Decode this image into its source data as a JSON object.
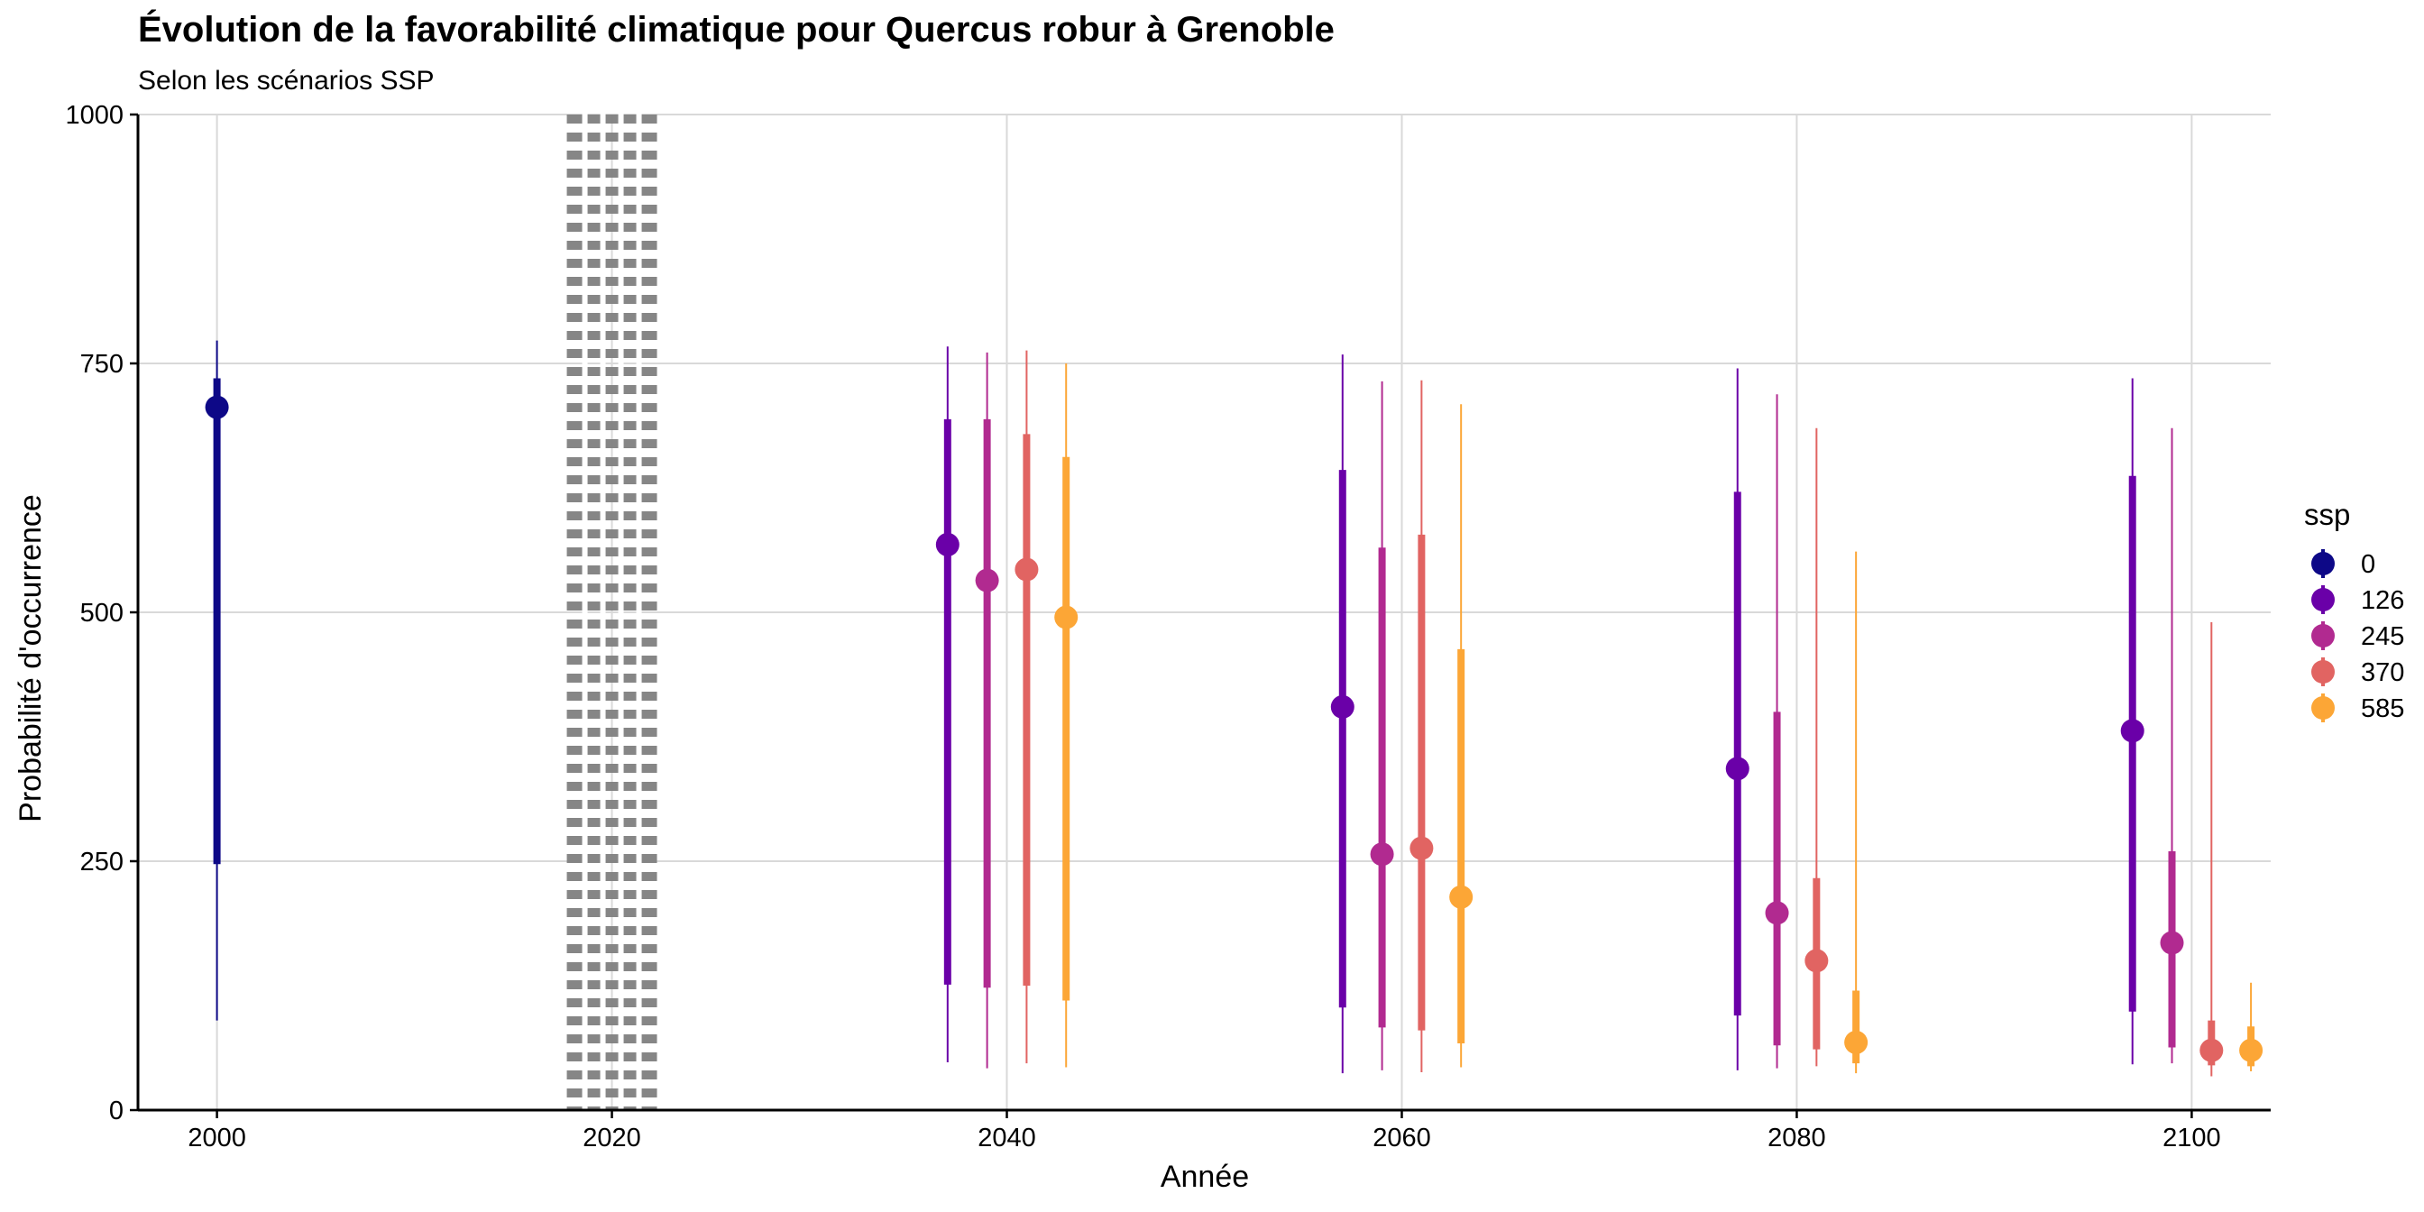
{
  "chart_data": {
    "type": "pointrange",
    "title": "Évolution de la favorabilité climatique pour Quercus robur à Grenoble",
    "subtitle": "Selon les scénarios SSP",
    "xlabel": "Année",
    "ylabel": "Probabilité d'occurrence",
    "xlim": [
      1996,
      2104
    ],
    "ylim": [
      0,
      1000
    ],
    "x_ticks": [
      2000,
      2020,
      2040,
      2060,
      2080,
      2100
    ],
    "y_ticks": [
      0,
      250,
      500,
      750,
      1000
    ],
    "grid": true,
    "reference_line": {
      "x": 2020,
      "style": "dotted",
      "color": "#808080"
    },
    "legend": {
      "title": "ssp",
      "position": "right"
    },
    "series": [
      {
        "name": "0",
        "color": "#0D0887",
        "points": [
          {
            "year": 2000,
            "value": 706,
            "inner": [
              247,
              735
            ],
            "outer": [
              90,
              773
            ]
          }
        ]
      },
      {
        "name": "126",
        "color": "#6A00A8",
        "points": [
          {
            "year": 2040,
            "value": 568,
            "inner": [
              126,
              694
            ],
            "outer": [
              48,
              767
            ]
          },
          {
            "year": 2060,
            "value": 405,
            "inner": [
              103,
              643
            ],
            "outer": [
              37,
              759
            ]
          },
          {
            "year": 2080,
            "value": 343,
            "inner": [
              95,
              621
            ],
            "outer": [
              40,
              745
            ]
          },
          {
            "year": 2100,
            "value": 381,
            "inner": [
              99,
              637
            ],
            "outer": [
              46,
              735
            ]
          }
        ]
      },
      {
        "name": "245",
        "color": "#B12A90",
        "points": [
          {
            "year": 2040,
            "value": 532,
            "inner": [
              123,
              694
            ],
            "outer": [
              42,
              761
            ]
          },
          {
            "year": 2060,
            "value": 257,
            "inner": [
              83,
              565
            ],
            "outer": [
              40,
              732
            ]
          },
          {
            "year": 2080,
            "value": 198,
            "inner": [
              65,
              400
            ],
            "outer": [
              42,
              719
            ]
          },
          {
            "year": 2100,
            "value": 168,
            "inner": [
              63,
              260
            ],
            "outer": [
              47,
              685
            ]
          }
        ]
      },
      {
        "name": "370",
        "color": "#E16462",
        "points": [
          {
            "year": 2040,
            "value": 543,
            "inner": [
              125,
              679
            ],
            "outer": [
              47,
              763
            ]
          },
          {
            "year": 2060,
            "value": 263,
            "inner": [
              80,
              578
            ],
            "outer": [
              38,
              733
            ]
          },
          {
            "year": 2080,
            "value": 150,
            "inner": [
              61,
              233
            ],
            "outer": [
              44,
              685
            ]
          },
          {
            "year": 2100,
            "value": 60,
            "inner": [
              45,
              90
            ],
            "outer": [
              34,
              490
            ]
          }
        ]
      },
      {
        "name": "585",
        "color": "#FCA636",
        "points": [
          {
            "year": 2040,
            "value": 495,
            "inner": [
              110,
              656
            ],
            "outer": [
              43,
              750
            ]
          },
          {
            "year": 2060,
            "value": 214,
            "inner": [
              67,
              463
            ],
            "outer": [
              43,
              709
            ]
          },
          {
            "year": 2080,
            "value": 68,
            "inner": [
              47,
              120
            ],
            "outer": [
              37,
              561
            ]
          },
          {
            "year": 2100,
            "value": 60,
            "inner": [
              44,
              84
            ],
            "outer": [
              39,
              128
            ]
          }
        ]
      }
    ]
  }
}
